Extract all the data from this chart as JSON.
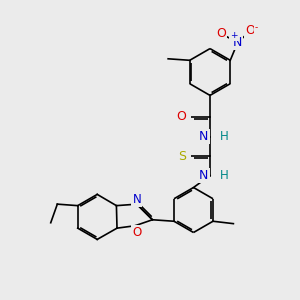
{
  "background_color": "#ebebeb",
  "bond_color": "#000000",
  "bond_width": 1.2,
  "dbo": 0.055,
  "atom_colors": {
    "N": "#0000cc",
    "O": "#dd0000",
    "S": "#aaaa00",
    "H": "#008888",
    "C": "#000000"
  },
  "fs": 8.5,
  "fss": 6.5
}
